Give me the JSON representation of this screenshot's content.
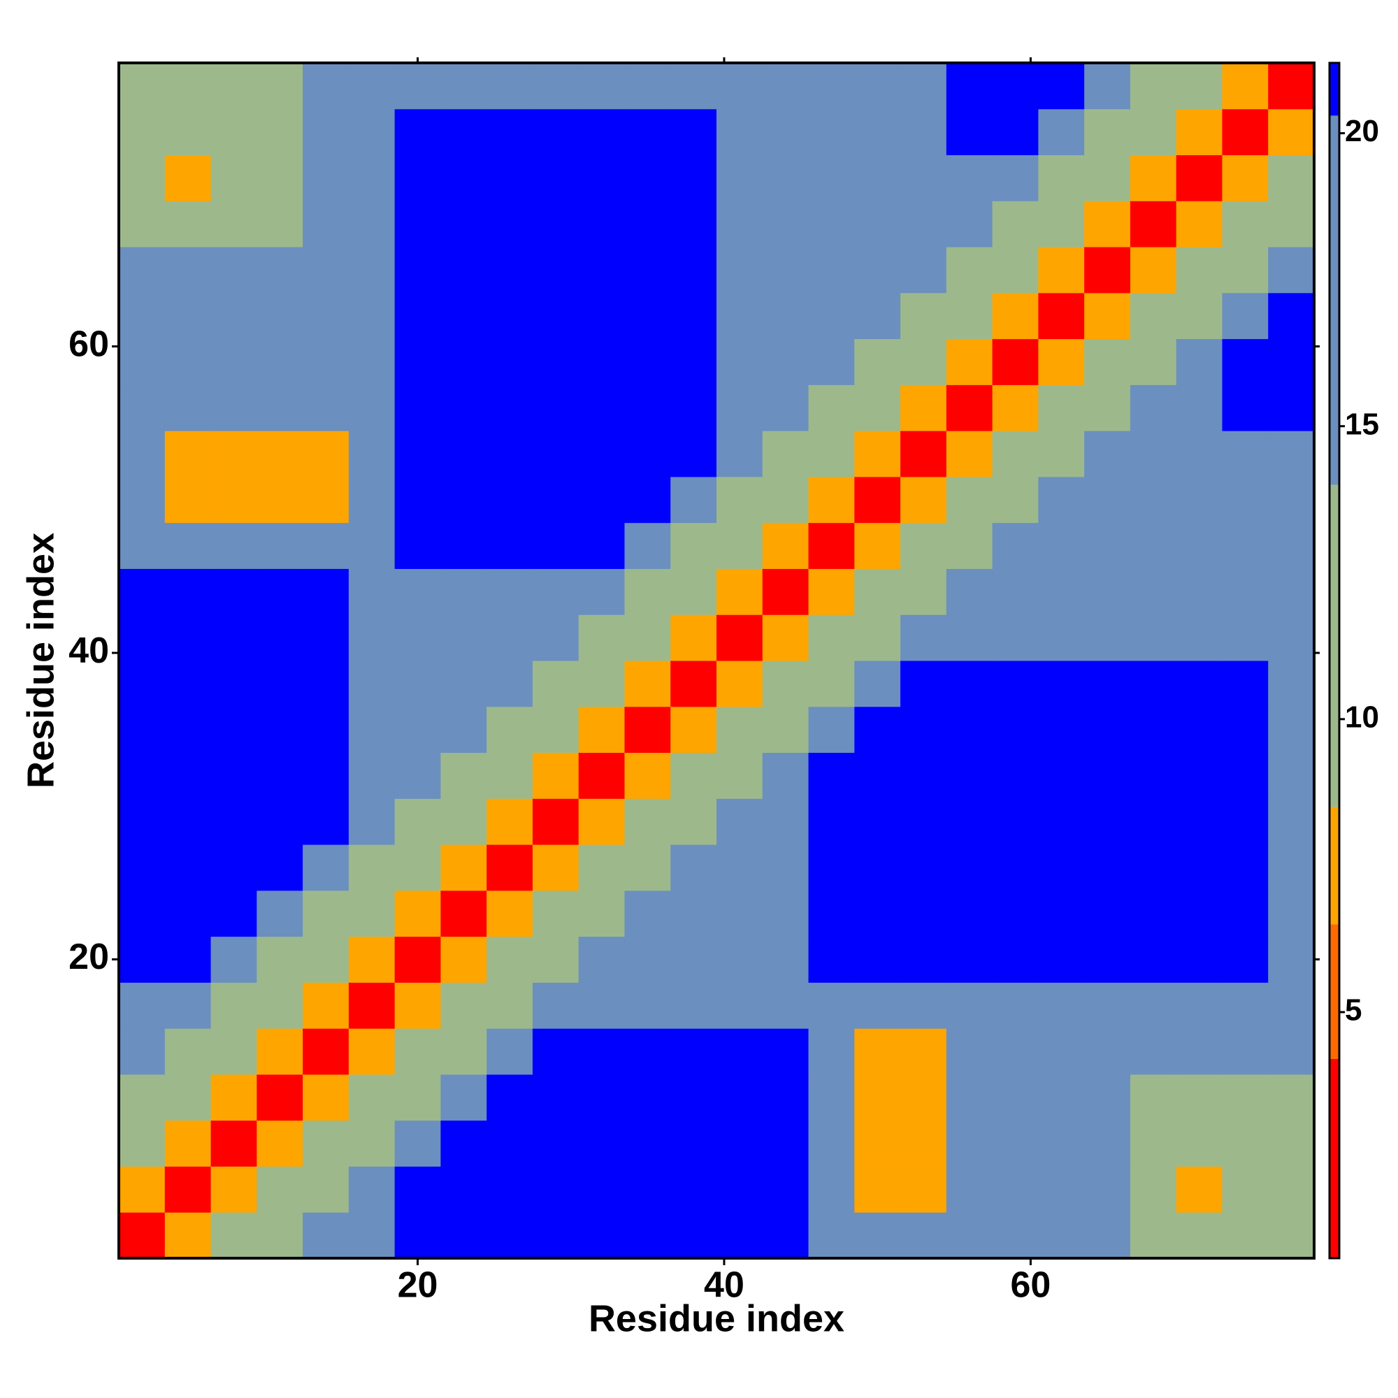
{
  "chart_data": {
    "type": "heatmap",
    "x_label": "Residue index",
    "y_label": "Residue index",
    "x": [
      2,
      5,
      8,
      11,
      14,
      17,
      20,
      23,
      26,
      29,
      32,
      35,
      38,
      41,
      44,
      47,
      50,
      53,
      56,
      59,
      62,
      65,
      68,
      71,
      74,
      77
    ],
    "y": [
      2,
      5,
      8,
      11,
      14,
      17,
      20,
      23,
      26,
      29,
      32,
      35,
      38,
      41,
      44,
      47,
      50,
      53,
      56,
      59,
      62,
      65,
      68,
      71,
      74,
      77
    ],
    "z": [
      [
        3,
        7,
        11,
        13,
        15,
        16,
        21,
        21,
        21,
        21,
        21,
        21,
        21,
        21,
        21,
        16,
        16,
        16,
        16,
        16,
        16,
        16,
        13,
        13,
        13,
        13
      ],
      [
        7,
        3,
        7,
        11,
        13,
        15,
        21,
        21,
        21,
        21,
        21,
        21,
        21,
        21,
        21,
        16,
        7,
        7,
        16,
        16,
        16,
        16,
        13,
        8,
        13,
        13
      ],
      [
        11,
        7,
        3,
        7,
        11,
        13,
        15,
        21,
        21,
        21,
        21,
        21,
        21,
        21,
        21,
        16,
        7,
        7,
        16,
        16,
        16,
        16,
        13,
        13,
        13,
        13
      ],
      [
        13,
        11,
        7,
        3,
        7,
        11,
        13,
        15,
        21,
        21,
        21,
        21,
        21,
        21,
        21,
        16,
        7,
        7,
        16,
        16,
        16,
        16,
        13,
        13,
        13,
        13
      ],
      [
        15,
        13,
        11,
        7,
        3,
        7,
        11,
        13,
        15,
        21,
        21,
        21,
        21,
        21,
        21,
        16,
        7,
        7,
        16,
        16,
        16,
        16,
        16,
        16,
        16,
        16
      ],
      [
        16,
        15,
        13,
        11,
        7,
        3,
        7,
        11,
        13,
        15,
        16,
        16,
        16,
        16,
        16,
        16,
        16,
        16,
        16,
        16,
        16,
        16,
        16,
        16,
        16,
        16
      ],
      [
        21,
        21,
        15,
        13,
        11,
        7,
        3,
        7,
        11,
        13,
        15,
        16,
        16,
        16,
        16,
        21,
        21,
        21,
        21,
        21,
        21,
        21,
        21,
        21,
        21,
        16
      ],
      [
        21,
        21,
        21,
        15,
        13,
        11,
        7,
        3,
        7,
        11,
        13,
        15,
        16,
        16,
        16,
        21,
        21,
        21,
        21,
        21,
        21,
        21,
        21,
        21,
        21,
        16
      ],
      [
        21,
        21,
        21,
        21,
        15,
        13,
        11,
        7,
        3,
        7,
        11,
        13,
        15,
        16,
        16,
        21,
        21,
        21,
        21,
        21,
        21,
        21,
        21,
        21,
        21,
        16
      ],
      [
        21,
        21,
        21,
        21,
        21,
        15,
        13,
        11,
        7,
        3,
        7,
        11,
        13,
        15,
        16,
        21,
        21,
        21,
        21,
        21,
        21,
        21,
        21,
        21,
        21,
        16
      ],
      [
        21,
        21,
        21,
        21,
        21,
        16,
        15,
        13,
        11,
        7,
        3,
        7,
        11,
        13,
        15,
        21,
        21,
        21,
        21,
        21,
        21,
        21,
        21,
        21,
        21,
        16
      ],
      [
        21,
        21,
        21,
        21,
        21,
        16,
        16,
        15,
        13,
        11,
        7,
        3,
        7,
        11,
        13,
        15,
        21,
        21,
        21,
        21,
        21,
        21,
        21,
        21,
        21,
        16
      ],
      [
        21,
        21,
        21,
        21,
        21,
        16,
        16,
        16,
        15,
        13,
        11,
        7,
        3,
        7,
        11,
        13,
        15,
        21,
        21,
        21,
        21,
        21,
        21,
        21,
        21,
        16
      ],
      [
        21,
        21,
        21,
        21,
        21,
        16,
        16,
        16,
        16,
        15,
        13,
        11,
        7,
        3,
        7,
        11,
        13,
        15,
        18,
        18,
        18,
        18,
        18,
        18,
        18,
        16
      ],
      [
        21,
        21,
        21,
        21,
        21,
        16,
        16,
        16,
        16,
        16,
        15,
        13,
        11,
        7,
        3,
        7,
        11,
        13,
        15,
        16,
        16,
        16,
        16,
        16,
        16,
        16
      ],
      [
        16,
        16,
        16,
        16,
        16,
        16,
        21,
        21,
        21,
        21,
        21,
        15,
        13,
        11,
        7,
        3,
        7,
        11,
        13,
        15,
        16,
        16,
        16,
        16,
        16,
        16
      ],
      [
        16,
        7,
        7,
        7,
        7,
        16,
        21,
        21,
        21,
        21,
        21,
        21,
        15,
        13,
        11,
        7,
        3,
        7,
        11,
        13,
        15,
        16,
        16,
        16,
        16,
        16
      ],
      [
        16,
        7,
        7,
        7,
        7,
        16,
        21,
        21,
        21,
        21,
        21,
        21,
        21,
        15,
        13,
        11,
        7,
        3,
        7,
        11,
        13,
        15,
        16,
        16,
        16,
        16
      ],
      [
        16,
        16,
        16,
        16,
        16,
        16,
        21,
        21,
        21,
        21,
        21,
        21,
        21,
        18,
        15,
        13,
        11,
        7,
        3,
        7,
        11,
        13,
        15,
        16,
        21,
        21
      ],
      [
        16,
        16,
        16,
        16,
        16,
        16,
        21,
        21,
        21,
        21,
        21,
        21,
        21,
        18,
        16,
        15,
        13,
        11,
        7,
        3,
        7,
        11,
        13,
        15,
        21,
        21
      ],
      [
        16,
        16,
        16,
        16,
        16,
        16,
        21,
        21,
        21,
        21,
        21,
        21,
        21,
        18,
        16,
        16,
        15,
        13,
        11,
        7,
        3,
        7,
        11,
        13,
        15,
        21
      ],
      [
        16,
        16,
        16,
        16,
        16,
        16,
        21,
        21,
        21,
        21,
        21,
        21,
        21,
        18,
        16,
        16,
        16,
        15,
        13,
        11,
        7,
        3,
        7,
        11,
        13,
        15
      ],
      [
        13,
        13,
        13,
        13,
        16,
        16,
        21,
        21,
        21,
        21,
        21,
        21,
        21,
        18,
        16,
        16,
        16,
        16,
        15,
        13,
        11,
        7,
        3,
        7,
        11,
        13
      ],
      [
        13,
        8,
        13,
        13,
        16,
        16,
        21,
        21,
        21,
        21,
        21,
        21,
        21,
        18,
        16,
        16,
        16,
        16,
        16,
        15,
        13,
        11,
        7,
        3,
        7,
        11
      ],
      [
        13,
        13,
        13,
        13,
        16,
        16,
        21,
        21,
        21,
        21,
        21,
        21,
        21,
        18,
        16,
        16,
        16,
        16,
        21,
        21,
        15,
        13,
        11,
        7,
        3,
        7
      ],
      [
        13,
        13,
        13,
        13,
        16,
        16,
        16,
        16,
        16,
        16,
        16,
        16,
        16,
        16,
        16,
        16,
        16,
        16,
        21,
        21,
        21,
        15,
        13,
        11,
        7,
        3
      ]
    ],
    "xlim": [
      0.5,
      78.5
    ],
    "ylim": [
      0.5,
      78.5
    ],
    "xticks": [
      20,
      40,
      60
    ],
    "yticks": [
      20,
      40,
      60
    ],
    "clim": [
      0.8,
      21.2
    ],
    "cticks": [
      5,
      10,
      15,
      20
    ],
    "colorscale": [
      {
        "to": 4.2,
        "color": "#ff0000"
      },
      {
        "to": 6.5,
        "color": "#ff6a00"
      },
      {
        "to": 8.5,
        "color": "#ffa500"
      },
      {
        "to": 14,
        "color": "#9db98c"
      },
      {
        "to": 20.3,
        "color": "#6b8fbf"
      },
      {
        "to": 21.2,
        "color": "#0000ff"
      }
    ]
  }
}
